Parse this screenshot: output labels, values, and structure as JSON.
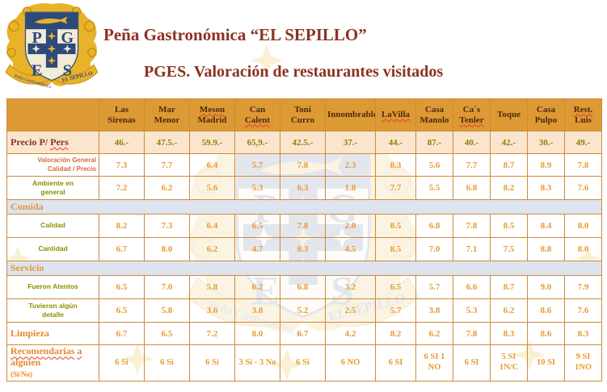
{
  "titles": {
    "line1": "Peña Gastronómica “EL SEPILLO”",
    "line2": "PGES. Valoración de restaurantes visitados"
  },
  "logo": {
    "letters": [
      "P",
      "G",
      "E",
      "S"
    ],
    "banner_left": "Peña Gastronómica",
    "banner_right": "EL SEPILLO"
  },
  "colors": {
    "title_maroon": "#8C3220",
    "header_bg": "#DD9933",
    "header_text": "#4E2A10",
    "border_orange": "#CE8A3A",
    "row_peach": "#FAE5CF",
    "value_orange": "#E89B30",
    "price_olive": "#9A7B00",
    "label_olive": "#8E8E00",
    "section_bg": "#DDE4EF",
    "section_text": "#E8942F",
    "crest_navy": "#2E4A7A",
    "crest_gold": "#E8B32A"
  },
  "table": {
    "columns": [
      {
        "lines": [
          "Las",
          "Sirenas"
        ],
        "spell": []
      },
      {
        "lines": [
          "Mar",
          "Menor"
        ],
        "spell": []
      },
      {
        "lines": [
          "Meson",
          "Madrid"
        ],
        "spell": [
          "Meson"
        ]
      },
      {
        "lines": [
          "Can",
          "Calent"
        ],
        "spell": [
          "Calent"
        ]
      },
      {
        "lines": [
          "Toni",
          "Curro"
        ],
        "spell": []
      },
      {
        "lines": [
          "Innombrable"
        ],
        "spell": []
      },
      {
        "lines": [
          "LaVilla"
        ],
        "spell": [
          "LaVilla"
        ]
      },
      {
        "lines": [
          "Casa",
          "Manolo"
        ],
        "spell": []
      },
      {
        "lines": [
          "Ca´s",
          "Tenler"
        ],
        "spell": [
          "Tenler"
        ]
      },
      {
        "lines": [
          "Toque"
        ],
        "spell": []
      },
      {
        "lines": [
          "Casa",
          "Pulpo"
        ],
        "spell": []
      },
      {
        "lines": [
          "Rest.",
          "Luis"
        ],
        "spell": [
          "Rest."
        ]
      }
    ],
    "rows": [
      {
        "kind": "price",
        "label_lines": [
          "Precio P/ Pers"
        ],
        "spell": [
          "Pers"
        ],
        "values": [
          "46.-",
          "47.5.-",
          "59.9.-",
          "65,9.-",
          "42.5.-",
          "37.-",
          "44.-",
          "87.-",
          "40.-",
          "42.-",
          "30.-",
          "49.-"
        ]
      },
      {
        "kind": "subnote",
        "label_lines": [
          "Valoración General",
          "Calidad / Precio"
        ],
        "spell": [],
        "values": [
          "7.3",
          "7.7",
          "6.4",
          "5.7",
          "7.8",
          "2.3",
          "8.3",
          "5.6",
          "7.7",
          "8.7",
          "8.9",
          "7.8"
        ]
      },
      {
        "kind": "olive",
        "label_lines": [
          "Ambiente en",
          "general"
        ],
        "spell": [],
        "values": [
          "7.2",
          "6.2",
          "5.6",
          "5.3",
          "6.3",
          "1.8",
          "7.7",
          "5.5",
          "6.8",
          "8.2",
          "8.3",
          "7.6"
        ]
      },
      {
        "kind": "section",
        "label_lines": [
          "Comida"
        ],
        "spell": []
      },
      {
        "kind": "olive",
        "label_lines": [
          "Calidad"
        ],
        "spell": [],
        "values": [
          "8.2",
          "7.3",
          "6.4",
          "6.5",
          "7.8",
          "2.0",
          "8.5",
          "6.8",
          "7.8",
          "8.5",
          "8.4",
          "8.0"
        ]
      },
      {
        "kind": "olive",
        "label_lines": [
          "Cantidad"
        ],
        "spell": [],
        "values": [
          "6.7",
          "8.0",
          "6.2",
          "4.7",
          "8.3",
          "4.5",
          "8.5",
          "7.0",
          "7.1",
          "7.5",
          "8.8",
          "8.0"
        ]
      },
      {
        "kind": "section",
        "label_lines": [
          "Servicio"
        ],
        "spell": []
      },
      {
        "kind": "olive",
        "label_lines": [
          "Fueron Atentos"
        ],
        "spell": [],
        "values": [
          "6.5",
          "7.0",
          "5.8",
          "6.2",
          "6.8",
          "3.2",
          "6.5",
          "5.7",
          "6.6",
          "8.7",
          "9.0",
          "7.9"
        ]
      },
      {
        "kind": "olive",
        "label_lines": [
          "Tuvieron algún",
          "detalle"
        ],
        "spell": [],
        "values": [
          "6.5",
          "5.8",
          "3.6",
          "3.8",
          "5.2",
          "2.5",
          "5.7",
          "3.8",
          "5.3",
          "6.2",
          "8.6",
          "7.6"
        ]
      },
      {
        "kind": "orange",
        "label_lines": [
          "Limpieza"
        ],
        "spell": [],
        "values": [
          "6.7",
          "6.5",
          "7.2",
          "8.0",
          "6.7",
          "4.2",
          "8.2",
          "6.2",
          "7.8",
          "8.3",
          "8.6",
          "8.3"
        ]
      },
      {
        "kind": "recommend",
        "label_lines": [
          "Recomendarias a",
          "alguien"
        ],
        "label_sub": "(Si/No)",
        "spell": [
          "Recomendarias",
          "a"
        ],
        "values": [
          "6 Si",
          "6 Si",
          "6 Si",
          "3 Si - 3 No",
          "6 Si",
          "6 NO",
          "6 SI",
          "6 SI 1 NO",
          "6 SI",
          "5 SI 1N/C",
          "10 SI",
          "9 SI 1NO"
        ]
      }
    ]
  }
}
